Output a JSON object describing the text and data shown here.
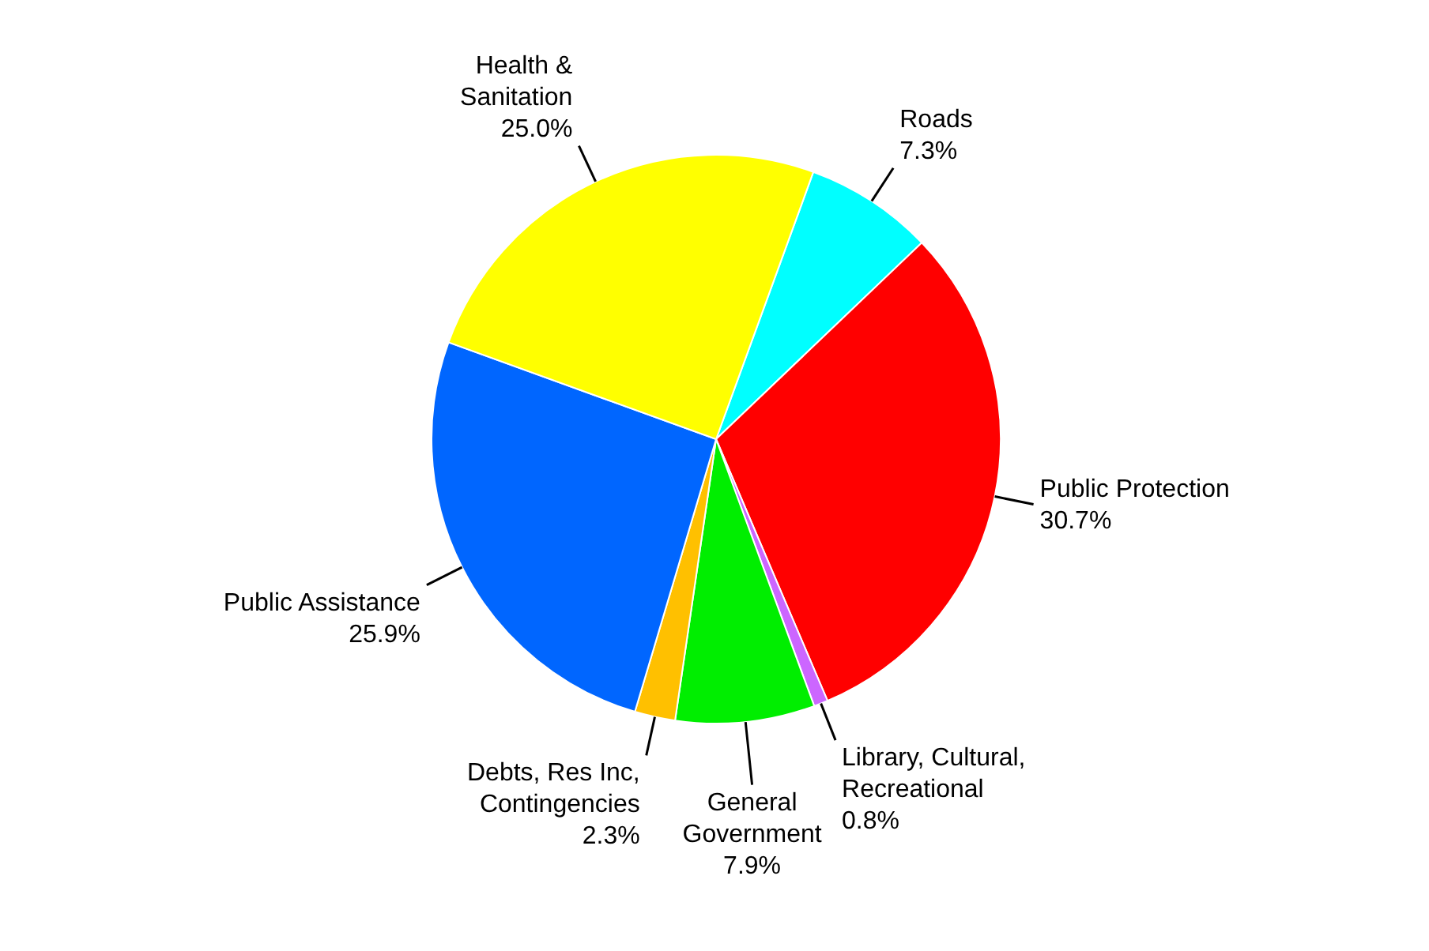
{
  "chart_data": {
    "type": "pie",
    "categories": [
      "Roads",
      "Public Protection",
      "Library, Cultural, Recreational",
      "General Government",
      "Debts, Res Inc, Contingencies",
      "Public Assistance",
      "Health & Sanitation"
    ],
    "values": [
      7.3,
      30.7,
      0.8,
      7.9,
      2.3,
      25.9,
      25.0
    ],
    "value_labels": [
      "7.3%",
      "30.7%",
      "0.8%",
      "7.9%",
      "2.3%",
      "25.9%",
      "25.0%"
    ],
    "colors": [
      "#00ffff",
      "#ff0000",
      "#cc66ff",
      "#00ee00",
      "#ffc000",
      "#0066ff",
      "#ffff00"
    ]
  }
}
